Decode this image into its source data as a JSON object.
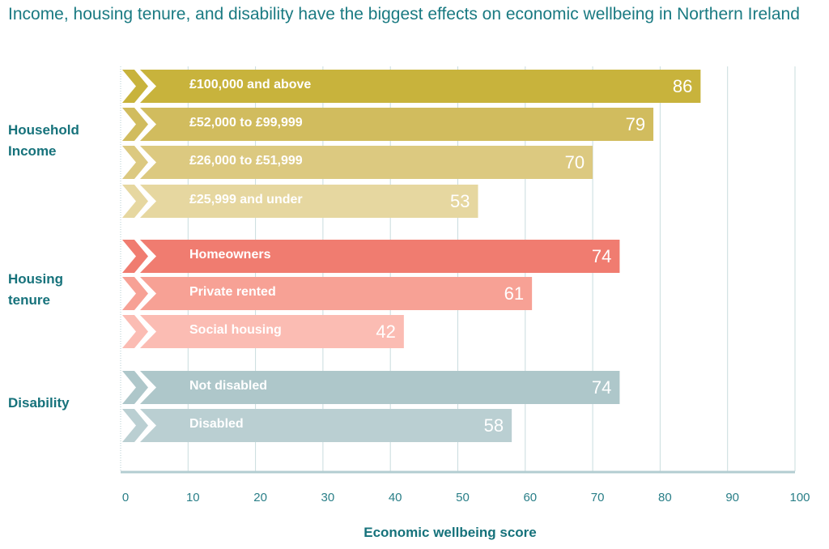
{
  "chart_data": {
    "type": "bar",
    "orientation": "horizontal",
    "title": "Income, housing tenure, and disability have the biggest effects on economic wellbeing in Northern Ireland",
    "xlabel": "Economic wellbeing score",
    "ylabel": "",
    "xlim": [
      0,
      100
    ],
    "xticks": [
      0,
      10,
      20,
      30,
      40,
      50,
      60,
      70,
      80,
      90,
      100
    ],
    "grid": true,
    "groups": [
      {
        "name": "Household Income",
        "label_lines": [
          "Household",
          "Income"
        ],
        "bars": [
          {
            "label": "£100,000 and above",
            "value": 86,
            "color": "#c8b33c"
          },
          {
            "label": "£52,000 to £99,999",
            "value": 79,
            "color": "#d1bc5e"
          },
          {
            "label": "£26,000 to £51,999",
            "value": 70,
            "color": "#dcc980"
          },
          {
            "label": "£25,999 and under",
            "value": 53,
            "color": "#e6d7a0"
          }
        ]
      },
      {
        "name": "Housing tenure",
        "label_lines": [
          "Housing",
          "tenure"
        ],
        "bars": [
          {
            "label": "Homeowners",
            "value": 74,
            "color": "#f07c70"
          },
          {
            "label": "Private rented",
            "value": 61,
            "color": "#f7a195"
          },
          {
            "label": "Social housing",
            "value": 42,
            "color": "#fbbcb3"
          }
        ]
      },
      {
        "name": "Disability",
        "label_lines": [
          "Disability"
        ],
        "bars": [
          {
            "label": "Not disabled",
            "value": 74,
            "color": "#aec7ca"
          },
          {
            "label": "Disabled",
            "value": 58,
            "color": "#bacfd2"
          }
        ]
      }
    ]
  },
  "colors": {
    "title": "#1a7a82",
    "gridline": "#c9dcde",
    "axis": "#b3cdd1"
  }
}
